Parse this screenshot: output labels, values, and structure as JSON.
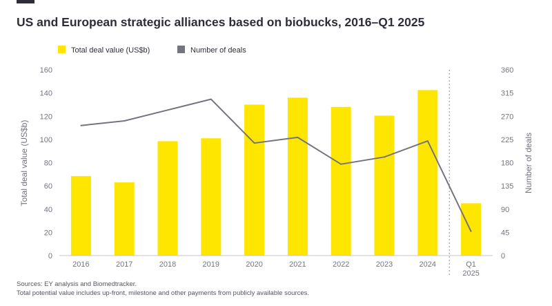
{
  "page": {
    "title": "US and European strategic alliances based on biobucks, 2016–Q1 2025",
    "sources": "Sources: EY analysis and Biomedtracker.",
    "note": "Total potential value includes up-front, milestone and other payments from publicly available sources."
  },
  "colors": {
    "bar": "#ffe600",
    "line": "#747480",
    "axis_text": "#747480",
    "title": "#2e2e38"
  },
  "chart_data": {
    "type": "bar",
    "title": "US and European strategic alliances based on biobucks, 2016–Q1 2025",
    "categories": [
      {
        "label": "2016",
        "label2": ""
      },
      {
        "label": "2017",
        "label2": ""
      },
      {
        "label": "2018",
        "label2": ""
      },
      {
        "label": "2019",
        "label2": ""
      },
      {
        "label": "2020",
        "label2": ""
      },
      {
        "label": "2021",
        "label2": ""
      },
      {
        "label": "2022",
        "label2": ""
      },
      {
        "label": "2023",
        "label2": ""
      },
      {
        "label": "2024",
        "label2": ""
      },
      {
        "label": "Q1",
        "label2": "2025"
      }
    ],
    "series": [
      {
        "name": "Total deal value (US$b)",
        "type": "bar",
        "axis": "left",
        "values": [
          68.5,
          63,
          98.5,
          101,
          130,
          136,
          128,
          120.5,
          142.5,
          45
        ]
      },
      {
        "name": "Number of deals",
        "type": "line",
        "axis": "right",
        "values": [
          252,
          261,
          282,
          303,
          218,
          229,
          177,
          191,
          222,
          47
        ]
      }
    ],
    "ylabel": "Total deal value (US$b)",
    "y2label": "Number of deals",
    "ylim": [
      0,
      160
    ],
    "y2lim": [
      0,
      360
    ],
    "yticks": [
      "0",
      "20",
      "40",
      "60",
      "80",
      "100",
      "120",
      "140",
      "160"
    ],
    "y2ticks": [
      "0",
      "45",
      "90",
      "135",
      "180",
      "225",
      "270",
      "315",
      "360"
    ],
    "legend": [
      "Total deal value (US$b)",
      "Number of deals"
    ],
    "legend_position": "top-left",
    "grid": false,
    "separator_before_index": 9
  }
}
